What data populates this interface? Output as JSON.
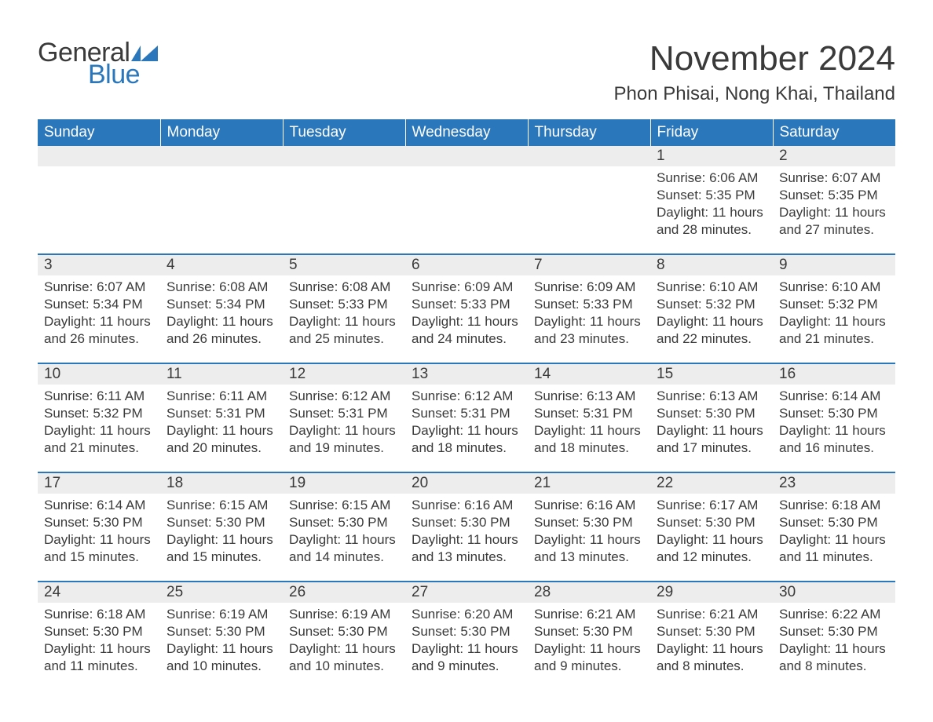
{
  "logo": {
    "text1": "General",
    "text2": "Blue",
    "flag_color": "#2b77bb"
  },
  "title": "November 2024",
  "location": "Phon Phisai, Nong Khai, Thailand",
  "colors": {
    "header_bg": "#2b77bb",
    "header_fg": "#ffffff",
    "daynum_bg": "#ededed",
    "row_border": "#2b77bb",
    "text": "#3a3a3a",
    "bg": "#ffffff"
  },
  "weekdays": [
    "Sunday",
    "Monday",
    "Tuesday",
    "Wednesday",
    "Thursday",
    "Friday",
    "Saturday"
  ],
  "weeks": [
    [
      null,
      null,
      null,
      null,
      null,
      {
        "n": "1",
        "sr": "6:06 AM",
        "ss": "5:35 PM",
        "dl": "11 hours and 28 minutes."
      },
      {
        "n": "2",
        "sr": "6:07 AM",
        "ss": "5:35 PM",
        "dl": "11 hours and 27 minutes."
      }
    ],
    [
      {
        "n": "3",
        "sr": "6:07 AM",
        "ss": "5:34 PM",
        "dl": "11 hours and 26 minutes."
      },
      {
        "n": "4",
        "sr": "6:08 AM",
        "ss": "5:34 PM",
        "dl": "11 hours and 26 minutes."
      },
      {
        "n": "5",
        "sr": "6:08 AM",
        "ss": "5:33 PM",
        "dl": "11 hours and 25 minutes."
      },
      {
        "n": "6",
        "sr": "6:09 AM",
        "ss": "5:33 PM",
        "dl": "11 hours and 24 minutes."
      },
      {
        "n": "7",
        "sr": "6:09 AM",
        "ss": "5:33 PM",
        "dl": "11 hours and 23 minutes."
      },
      {
        "n": "8",
        "sr": "6:10 AM",
        "ss": "5:32 PM",
        "dl": "11 hours and 22 minutes."
      },
      {
        "n": "9",
        "sr": "6:10 AM",
        "ss": "5:32 PM",
        "dl": "11 hours and 21 minutes."
      }
    ],
    [
      {
        "n": "10",
        "sr": "6:11 AM",
        "ss": "5:32 PM",
        "dl": "11 hours and 21 minutes."
      },
      {
        "n": "11",
        "sr": "6:11 AM",
        "ss": "5:31 PM",
        "dl": "11 hours and 20 minutes."
      },
      {
        "n": "12",
        "sr": "6:12 AM",
        "ss": "5:31 PM",
        "dl": "11 hours and 19 minutes."
      },
      {
        "n": "13",
        "sr": "6:12 AM",
        "ss": "5:31 PM",
        "dl": "11 hours and 18 minutes."
      },
      {
        "n": "14",
        "sr": "6:13 AM",
        "ss": "5:31 PM",
        "dl": "11 hours and 18 minutes."
      },
      {
        "n": "15",
        "sr": "6:13 AM",
        "ss": "5:30 PM",
        "dl": "11 hours and 17 minutes."
      },
      {
        "n": "16",
        "sr": "6:14 AM",
        "ss": "5:30 PM",
        "dl": "11 hours and 16 minutes."
      }
    ],
    [
      {
        "n": "17",
        "sr": "6:14 AM",
        "ss": "5:30 PM",
        "dl": "11 hours and 15 minutes."
      },
      {
        "n": "18",
        "sr": "6:15 AM",
        "ss": "5:30 PM",
        "dl": "11 hours and 15 minutes."
      },
      {
        "n": "19",
        "sr": "6:15 AM",
        "ss": "5:30 PM",
        "dl": "11 hours and 14 minutes."
      },
      {
        "n": "20",
        "sr": "6:16 AM",
        "ss": "5:30 PM",
        "dl": "11 hours and 13 minutes."
      },
      {
        "n": "21",
        "sr": "6:16 AM",
        "ss": "5:30 PM",
        "dl": "11 hours and 13 minutes."
      },
      {
        "n": "22",
        "sr": "6:17 AM",
        "ss": "5:30 PM",
        "dl": "11 hours and 12 minutes."
      },
      {
        "n": "23",
        "sr": "6:18 AM",
        "ss": "5:30 PM",
        "dl": "11 hours and 11 minutes."
      }
    ],
    [
      {
        "n": "24",
        "sr": "6:18 AM",
        "ss": "5:30 PM",
        "dl": "11 hours and 11 minutes."
      },
      {
        "n": "25",
        "sr": "6:19 AM",
        "ss": "5:30 PM",
        "dl": "11 hours and 10 minutes."
      },
      {
        "n": "26",
        "sr": "6:19 AM",
        "ss": "5:30 PM",
        "dl": "11 hours and 10 minutes."
      },
      {
        "n": "27",
        "sr": "6:20 AM",
        "ss": "5:30 PM",
        "dl": "11 hours and 9 minutes."
      },
      {
        "n": "28",
        "sr": "6:21 AM",
        "ss": "5:30 PM",
        "dl": "11 hours and 9 minutes."
      },
      {
        "n": "29",
        "sr": "6:21 AM",
        "ss": "5:30 PM",
        "dl": "11 hours and 8 minutes."
      },
      {
        "n": "30",
        "sr": "6:22 AM",
        "ss": "5:30 PM",
        "dl": "11 hours and 8 minutes."
      }
    ]
  ],
  "labels": {
    "sunrise": "Sunrise: ",
    "sunset": "Sunset: ",
    "daylight": "Daylight: "
  }
}
